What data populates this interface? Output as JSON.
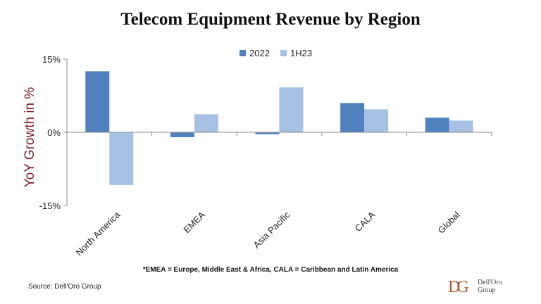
{
  "colors": {
    "series_2022": "#4e81bd",
    "series_1h23": "#a6c1e3",
    "ylabel": "#7b1e2b",
    "logo": "#b05a2a"
  },
  "chart_data": {
    "type": "bar",
    "title": "Telecom Equipment Revenue by Region",
    "ylabel": "YoY Growth in %",
    "xlabel": "",
    "categories": [
      "North America",
      "EMEA",
      "Asia Pacific",
      "CALA",
      "Global"
    ],
    "series": [
      {
        "name": "2022",
        "values": [
          12.5,
          -1.0,
          -0.4,
          6.0,
          3.0
        ]
      },
      {
        "name": "1H23",
        "values": [
          -10.8,
          3.7,
          9.2,
          4.7,
          2.4
        ]
      }
    ],
    "ylim": [
      -15,
      15
    ],
    "yticks": [
      15,
      0,
      -15
    ],
    "ytick_labels": [
      "15%",
      "0%",
      "-15%"
    ],
    "grid": false,
    "legend_position": "top-center"
  },
  "footnote": "*EMEA = Europe, Middle East & Africa, CALA = Caribbean and Latin America",
  "source": "Source: Dell'Oro Group",
  "logo": {
    "mark": "DG",
    "name": "Dell'Oro\nGroup"
  }
}
